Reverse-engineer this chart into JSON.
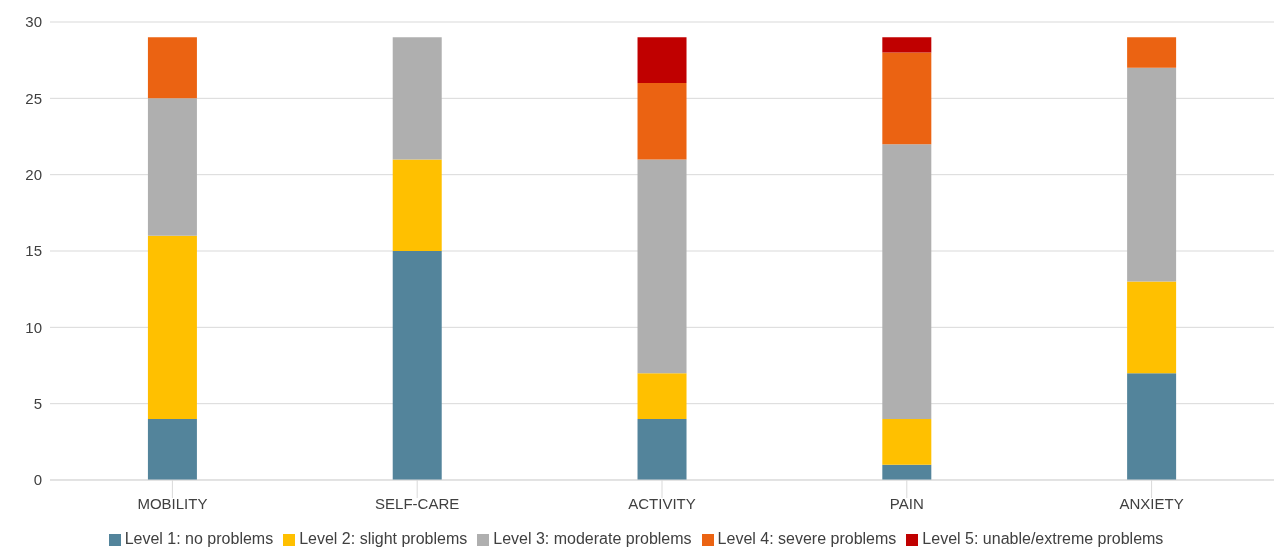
{
  "chart_data": {
    "type": "bar",
    "stacked": true,
    "categories": [
      "MOBILITY",
      "SELF-CARE",
      "ACTIVITY",
      "PAIN",
      "ANXIETY"
    ],
    "series": [
      {
        "name": "Level 1: no problems",
        "color": "#53849b",
        "values": [
          4,
          15,
          4,
          1,
          7
        ]
      },
      {
        "name": "Level 2: slight problems",
        "color": "#ffc000",
        "values": [
          12,
          6,
          3,
          3,
          6
        ]
      },
      {
        "name": "Level 3: moderate problems",
        "color": "#afafaf",
        "values": [
          9,
          8,
          14,
          18,
          14
        ]
      },
      {
        "name": "Level 4: severe problems",
        "color": "#eb6312",
        "values": [
          4,
          0,
          5,
          6,
          2
        ]
      },
      {
        "name": "Level 5: unable/extreme problems",
        "color": "#c00000",
        "values": [
          0,
          0,
          3,
          1,
          0
        ]
      }
    ],
    "ylim": [
      0,
      30
    ],
    "yticks": [
      0,
      5,
      10,
      15,
      20,
      25,
      30
    ],
    "grid": "y",
    "legend": "bottom"
  }
}
